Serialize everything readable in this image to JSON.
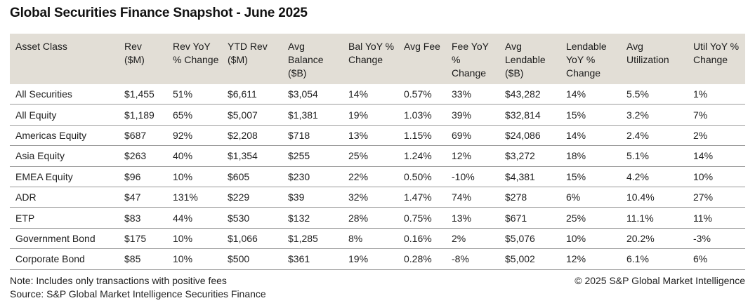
{
  "title": "Global Securities Finance Snapshot - June 2025",
  "chart_data": {
    "type": "table",
    "columns": [
      "Asset Class",
      "Rev ($M)",
      "Rev YoY % Change",
      "YTD Rev ($M)",
      "Avg Balance ($B)",
      "Bal YoY % Change",
      "Avg Fee",
      "Fee YoY % Change",
      "Avg Lendable ($B)",
      "Lendable YoY % Change",
      "Avg Utilization",
      "Util YoY % Change"
    ],
    "rows": [
      [
        "All Securities",
        "$1,455",
        "51%",
        "$6,611",
        "$3,054",
        "14%",
        "0.57%",
        "33%",
        "$43,282",
        "14%",
        "5.5%",
        "1%"
      ],
      [
        "All Equity",
        "$1,189",
        "65%",
        "$5,007",
        "$1,381",
        "19%",
        "1.03%",
        "39%",
        "$32,814",
        "15%",
        "3.2%",
        "7%"
      ],
      [
        "Americas Equity",
        "$687",
        "92%",
        "$2,208",
        "$718",
        "13%",
        "1.15%",
        "69%",
        "$24,086",
        "14%",
        "2.4%",
        "2%"
      ],
      [
        "Asia Equity",
        "$263",
        "40%",
        "$1,354",
        "$255",
        "25%",
        "1.24%",
        "12%",
        "$3,272",
        "18%",
        "5.1%",
        "14%"
      ],
      [
        "EMEA Equity",
        "$96",
        "10%",
        "$605",
        "$230",
        "22%",
        "0.50%",
        "-10%",
        "$4,381",
        "15%",
        "4.2%",
        "10%"
      ],
      [
        "ADR",
        "$47",
        "131%",
        "$229",
        "$39",
        "32%",
        "1.47%",
        "74%",
        "$278",
        "6%",
        "10.4%",
        "27%"
      ],
      [
        "ETP",
        "$83",
        "44%",
        "$530",
        "$132",
        "28%",
        "0.75%",
        "13%",
        "$671",
        "25%",
        "11.1%",
        "11%"
      ],
      [
        "Government Bond",
        "$175",
        "10%",
        "$1,066",
        "$1,285",
        "8%",
        "0.16%",
        "2%",
        "$5,076",
        "10%",
        "20.2%",
        "-3%"
      ],
      [
        "Corporate Bond",
        "$85",
        "10%",
        "$500",
        "$361",
        "19%",
        "0.28%",
        "-8%",
        "$5,002",
        "12%",
        "6.1%",
        "6%"
      ]
    ]
  },
  "footer": {
    "note": "Note: Includes only transactions with positive fees",
    "source": "Source: S&P Global Market Intelligence Securities Finance",
    "copyright": "© 2025 S&P Global Market Intelligence"
  }
}
